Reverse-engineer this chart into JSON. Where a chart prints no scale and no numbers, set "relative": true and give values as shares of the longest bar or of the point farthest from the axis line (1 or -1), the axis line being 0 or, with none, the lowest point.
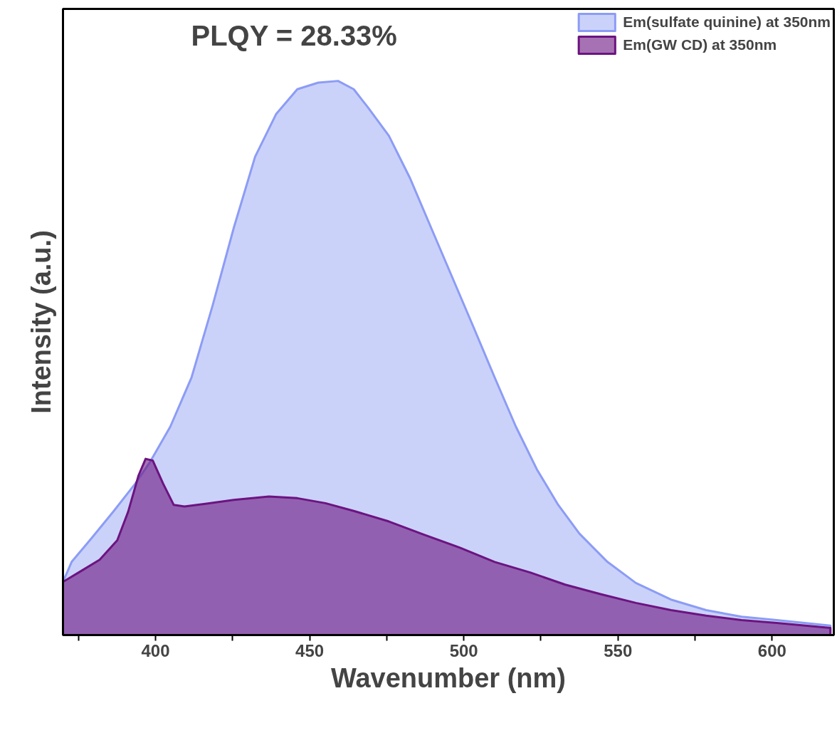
{
  "chart_data": {
    "type": "area",
    "relative": true,
    "xlabel": "Wavenumber (nm)",
    "ylabel": "Intensity (a.u.)",
    "annotations": [
      "PLQY = 28.33%"
    ],
    "xlim": [
      370,
      620
    ],
    "xticks": [
      {
        "value": 375,
        "label": null
      },
      400,
      {
        "value": 425,
        "label": null
      },
      450,
      {
        "value": 475,
        "label": null
      },
      500,
      {
        "value": 525,
        "label": null
      },
      550,
      {
        "value": 575,
        "label": null
      },
      600
    ],
    "legend": "top right",
    "grid": false,
    "series": [
      {
        "name": "Em(sulfate quinine) at 350nm",
        "color": "#8c9cf5",
        "x": [
          370.0,
          372.8,
          379.6,
          386.5,
          393.4,
          398.2,
          404.8,
          411.7,
          418.5,
          425.4,
          432.3,
          439.1,
          446.0,
          452.8,
          459.2,
          464.3,
          468.8,
          475.7,
          482.6,
          489.4,
          496.3,
          503.2,
          510.0,
          516.9,
          523.7,
          530.6,
          537.5,
          546.6,
          555.8,
          567.2,
          578.6,
          590.1,
          601.5,
          618.9
        ],
        "values": [
          0.096,
          0.132,
          0.177,
          0.224,
          0.273,
          0.312,
          0.376,
          0.465,
          0.594,
          0.735,
          0.863,
          0.94,
          0.985,
          0.997,
          1.0,
          0.985,
          0.953,
          0.901,
          0.824,
          0.735,
          0.645,
          0.555,
          0.465,
          0.376,
          0.299,
          0.235,
          0.183,
          0.132,
          0.094,
          0.064,
          0.045,
          0.033,
          0.027,
          0.017
        ]
      },
      {
        "name": "Em(GW CD) at 350nm",
        "color": "#6c1480",
        "x": [
          370.0,
          375.1,
          381.9,
          387.6,
          391.1,
          394.5,
          396.8,
          399.1,
          402.5,
          405.9,
          409.4,
          416.2,
          425.4,
          436.8,
          446.0,
          455.1,
          464.3,
          475.7,
          487.1,
          498.6,
          510.0,
          521.5,
          532.9,
          544.3,
          555.8,
          567.2,
          578.6,
          590.1,
          601.5,
          618.9
        ],
        "values": [
          0.096,
          0.113,
          0.136,
          0.171,
          0.222,
          0.288,
          0.318,
          0.315,
          0.273,
          0.235,
          0.232,
          0.237,
          0.244,
          0.25,
          0.247,
          0.238,
          0.224,
          0.205,
          0.181,
          0.158,
          0.132,
          0.113,
          0.091,
          0.074,
          0.058,
          0.045,
          0.035,
          0.027,
          0.022,
          0.013
        ]
      }
    ]
  }
}
